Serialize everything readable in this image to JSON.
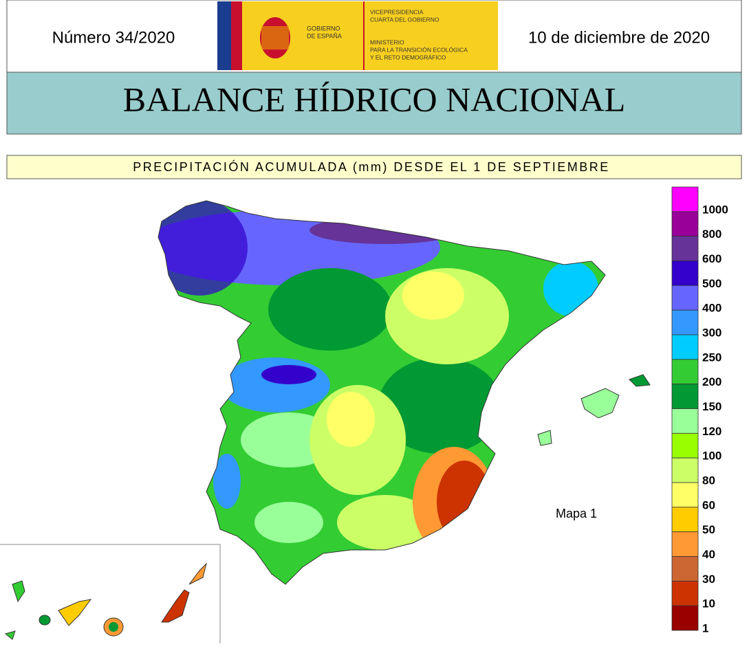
{
  "header": {
    "number": "Número 34/2020",
    "date": "10 de diciembre de 2020",
    "logo": {
      "government": [
        "GOBIERNO",
        "DE ESPAÑA"
      ],
      "vice": [
        "VICEPRESIDENCIA",
        "CUARTA DEL GOBIERNO"
      ],
      "ministry": [
        "MINISTERIO",
        "PARA LA TRANSICIÓN ECOLÓGICA",
        "Y EL RETO DEMOGRÁFICO"
      ]
    }
  },
  "title": "BALANCE HÍDRICO NACIONAL",
  "subtitle": "PRECIPITACIÓN ACUMULADA (mm) DESDE EL 1 DE SEPTIEMBRE",
  "map_label": "Mapa 1",
  "legend": {
    "items": [
      {
        "value": 1000,
        "color": "#ff00ff"
      },
      {
        "value": 800,
        "color": "#990099"
      },
      {
        "value": 600,
        "color": "#663399"
      },
      {
        "value": 500,
        "color": "#3300cc"
      },
      {
        "value": 400,
        "color": "#6666ff"
      },
      {
        "value": 300,
        "color": "#3399ff"
      },
      {
        "value": 250,
        "color": "#00ccff"
      },
      {
        "value": 200,
        "color": "#33cc33"
      },
      {
        "value": 150,
        "color": "#009933"
      },
      {
        "value": 120,
        "color": "#99ff99"
      },
      {
        "value": 100,
        "color": "#99ff00"
      },
      {
        "value": 80,
        "color": "#ccff66"
      },
      {
        "value": 60,
        "color": "#ffff66"
      },
      {
        "value": 50,
        "color": "#ffcc00"
      },
      {
        "value": 40,
        "color": "#ff9933"
      },
      {
        "value": 30,
        "color": "#cc6633"
      },
      {
        "value": 10,
        "color": "#cc3300"
      },
      {
        "value": 1,
        "color": "#990000"
      }
    ]
  }
}
